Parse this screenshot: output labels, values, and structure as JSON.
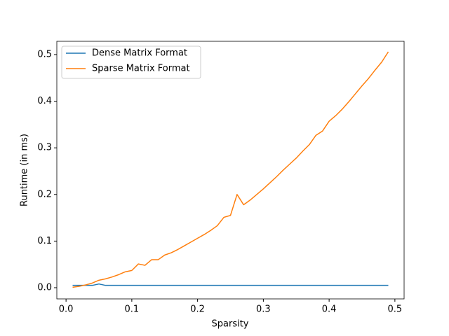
{
  "chart_data": {
    "type": "line",
    "xlabel": "Sparsity",
    "ylabel": "Runtime (in ms)",
    "x": [
      0.01,
      0.02,
      0.03,
      0.04,
      0.05,
      0.06,
      0.07,
      0.08,
      0.09,
      0.1,
      0.11,
      0.12,
      0.13,
      0.14,
      0.15,
      0.16,
      0.17,
      0.18,
      0.19,
      0.2,
      0.21,
      0.22,
      0.23,
      0.24,
      0.25,
      0.26,
      0.27,
      0.28,
      0.29,
      0.3,
      0.31,
      0.32,
      0.33,
      0.34,
      0.35,
      0.36,
      0.37,
      0.38,
      0.39,
      0.4,
      0.41,
      0.42,
      0.43,
      0.44,
      0.45,
      0.46,
      0.47,
      0.48,
      0.49
    ],
    "series": [
      {
        "name": "Dense Matrix Format",
        "color": "#1f77b4",
        "values": [
          0.005,
          0.005,
          0.005,
          0.005,
          0.008,
          0.005,
          0.005,
          0.005,
          0.005,
          0.005,
          0.005,
          0.005,
          0.005,
          0.005,
          0.005,
          0.005,
          0.005,
          0.005,
          0.005,
          0.005,
          0.005,
          0.005,
          0.005,
          0.005,
          0.005,
          0.005,
          0.005,
          0.005,
          0.005,
          0.005,
          0.005,
          0.005,
          0.005,
          0.005,
          0.005,
          0.005,
          0.005,
          0.005,
          0.005,
          0.005,
          0.005,
          0.005,
          0.005,
          0.005,
          0.005,
          0.005,
          0.005,
          0.005,
          0.005
        ]
      },
      {
        "name": "Sparse Matrix Format",
        "color": "#ff7f0e",
        "values": [
          0.001,
          0.003,
          0.006,
          0.01,
          0.016,
          0.019,
          0.023,
          0.028,
          0.034,
          0.037,
          0.051,
          0.048,
          0.06,
          0.06,
          0.07,
          0.075,
          0.082,
          0.09,
          0.098,
          0.106,
          0.114,
          0.123,
          0.133,
          0.151,
          0.155,
          0.2,
          0.178,
          0.188,
          0.2,
          0.212,
          0.225,
          0.238,
          0.252,
          0.265,
          0.278,
          0.293,
          0.307,
          0.327,
          0.336,
          0.357,
          0.369,
          0.383,
          0.399,
          0.416,
          0.433,
          0.449,
          0.467,
          0.484,
          0.506
        ]
      }
    ],
    "xlim": [
      -0.014,
      0.514
    ],
    "ylim": [
      -0.024,
      0.5285
    ],
    "xticks": [
      {
        "value": 0,
        "label": "0.0"
      },
      0.1,
      0.2,
      0.3,
      0.4,
      0.5
    ],
    "yticks": [
      {
        "value": 0,
        "label": "0.0"
      },
      0.1,
      0.2,
      0.3,
      0.4,
      0.5
    ],
    "legend": "upper left"
  }
}
